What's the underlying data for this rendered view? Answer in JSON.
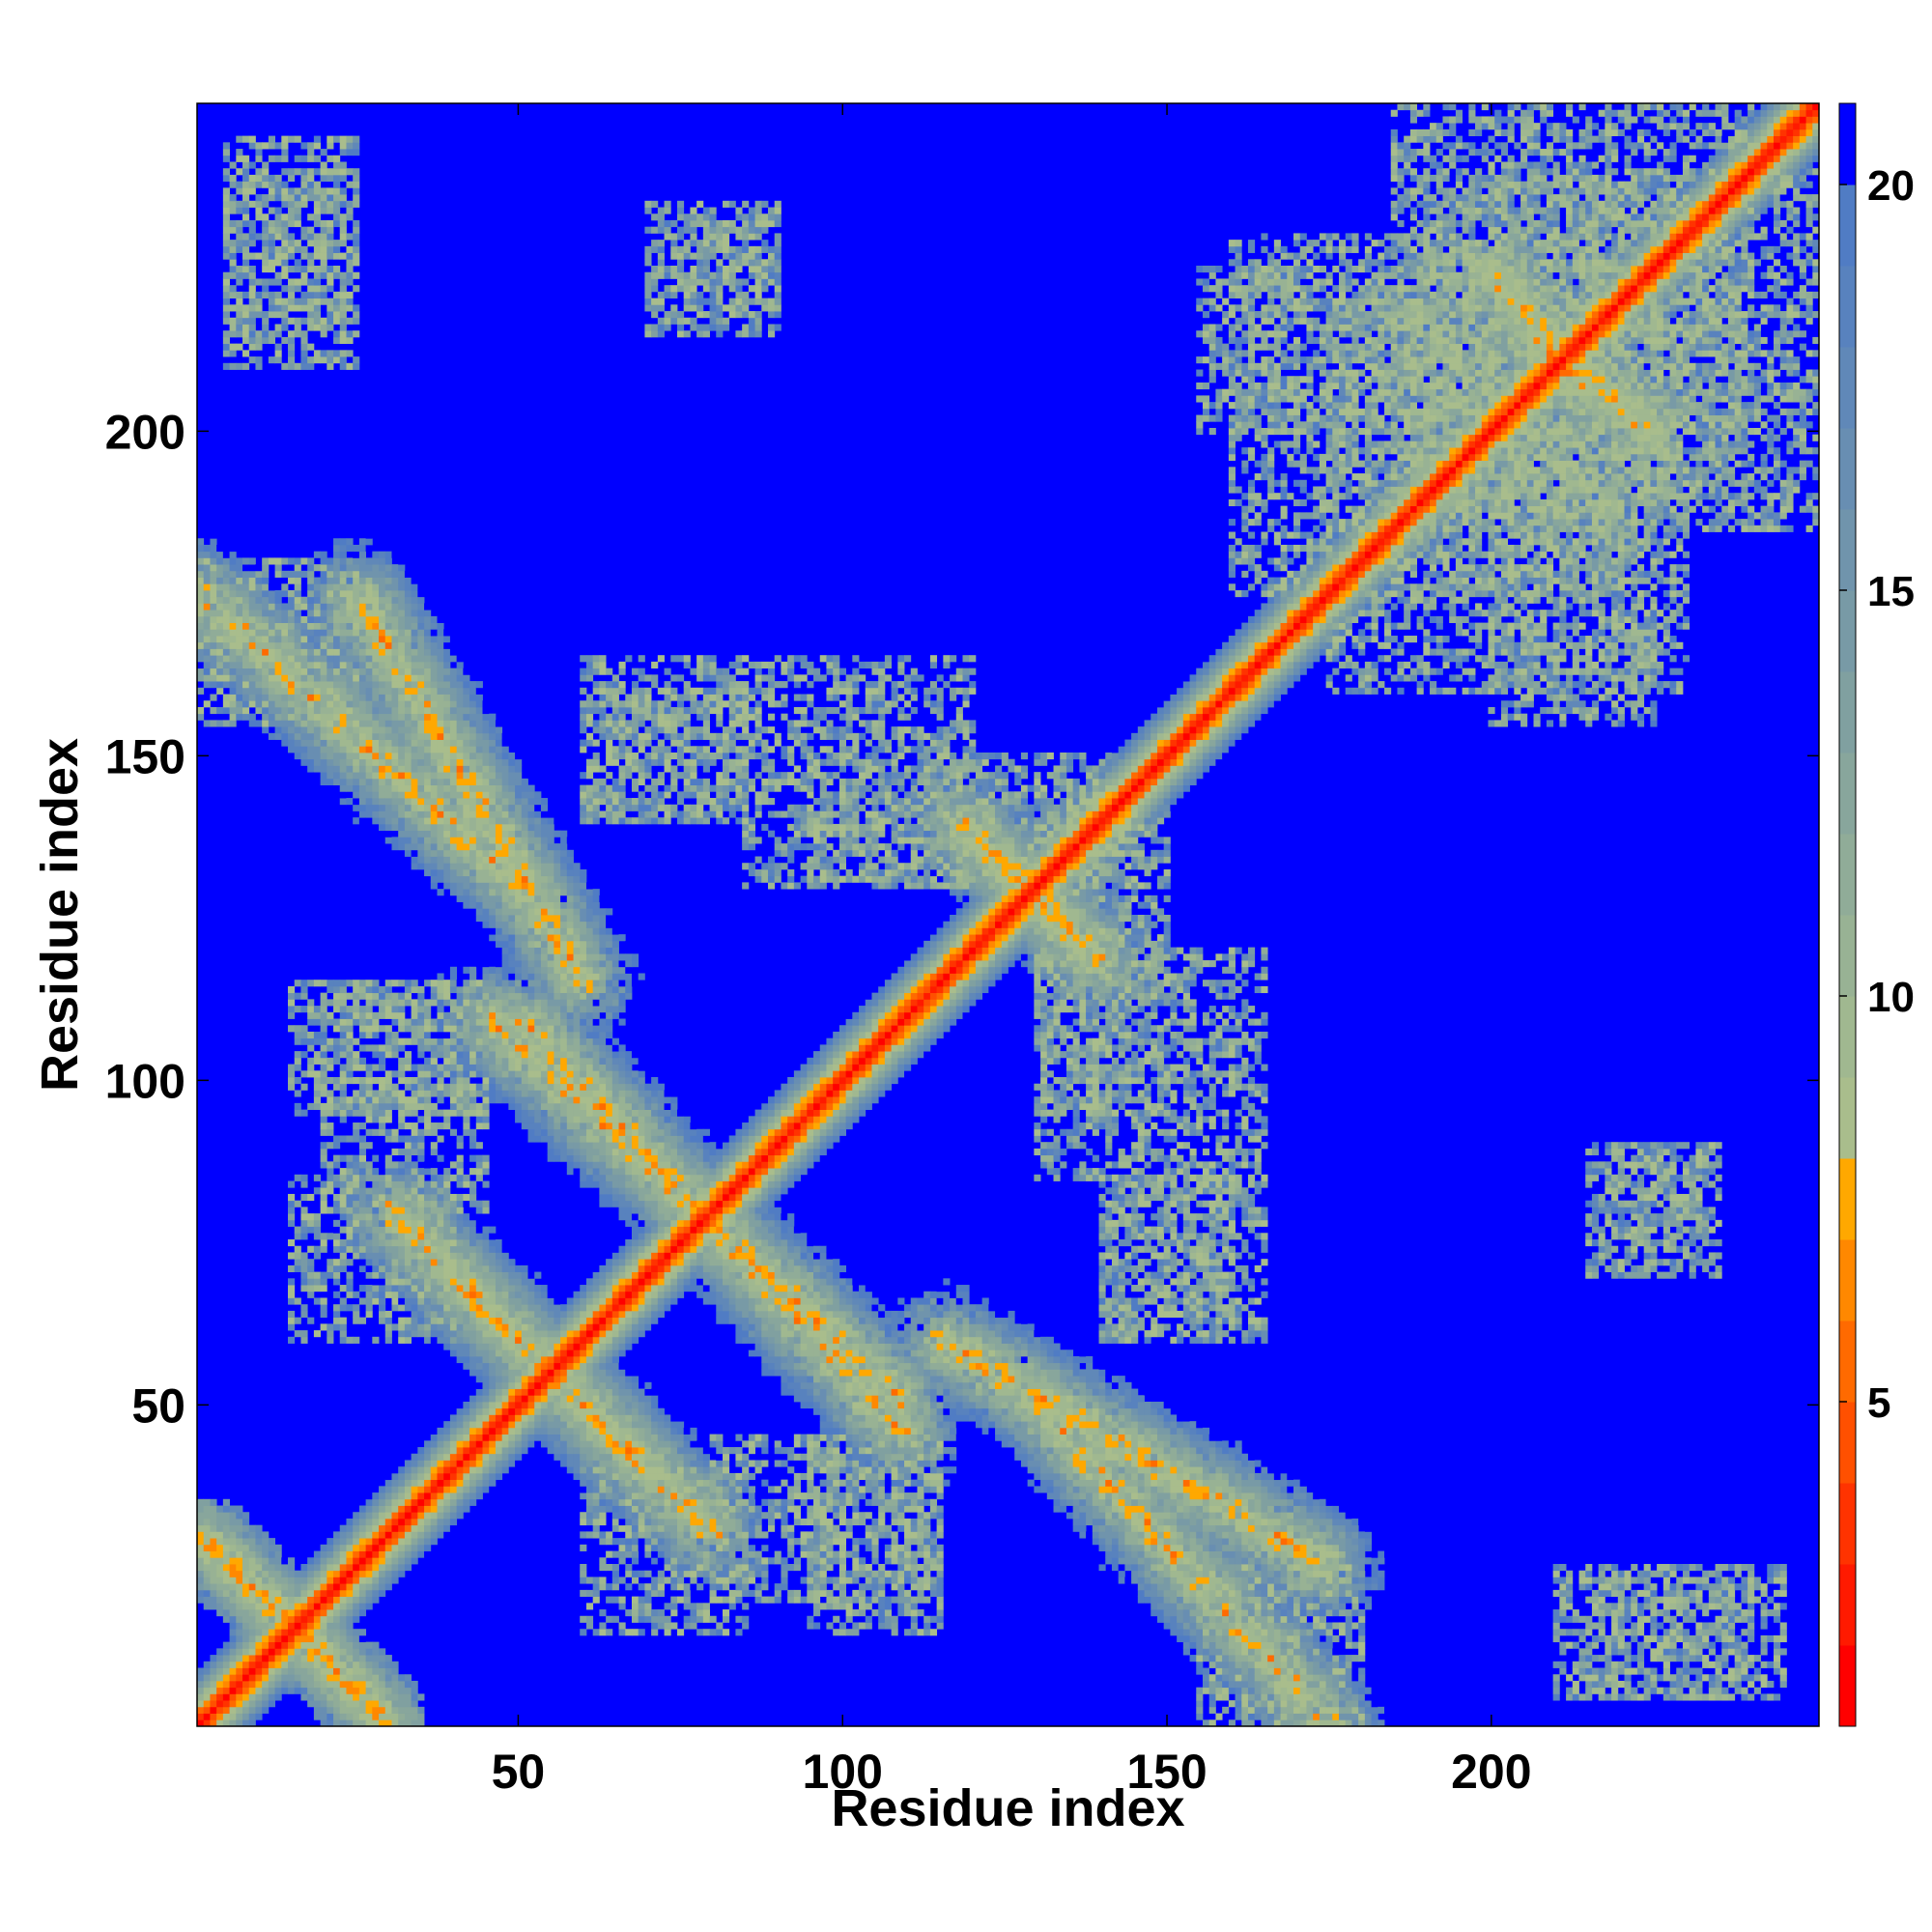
{
  "chart_data": {
    "type": "heatmap",
    "title": "",
    "xlabel": "Residue index",
    "ylabel": "Residue index",
    "xlim": [
      1,
      250
    ],
    "ylim": [
      1,
      250
    ],
    "x_ticks": [
      50,
      100,
      150,
      200
    ],
    "y_ticks": [
      50,
      100,
      150,
      200
    ],
    "colorbar": {
      "ticks": [
        5,
        10,
        15,
        20
      ],
      "range": [
        1,
        21
      ],
      "levels": [
        {
          "max": 2,
          "color": "#ff0000"
        },
        {
          "max": 3,
          "color": "#ff1a00"
        },
        {
          "max": 4,
          "color": "#ff3300"
        },
        {
          "max": 5,
          "color": "#ff5000"
        },
        {
          "max": 6,
          "color": "#ff6a00"
        },
        {
          "max": 7,
          "color": "#ff8800"
        },
        {
          "max": 8,
          "color": "#ffa800"
        },
        {
          "max": 9,
          "color": "#a9bd8c"
        },
        {
          "max": 10,
          "color": "#a0b890"
        },
        {
          "max": 11,
          "color": "#98b294"
        },
        {
          "max": 12,
          "color": "#90ac98"
        },
        {
          "max": 13,
          "color": "#88a69c"
        },
        {
          "max": 14,
          "color": "#80a0a0"
        },
        {
          "max": 15,
          "color": "#789aa6"
        },
        {
          "max": 16,
          "color": "#7094ac"
        },
        {
          "max": 17,
          "color": "#688eb2"
        },
        {
          "max": 18,
          "color": "#6088b8"
        },
        {
          "max": 19,
          "color": "#5882be"
        },
        {
          "max": 20,
          "color": "#507cc4"
        },
        {
          "max": 21,
          "color": "#0000ff"
        }
      ]
    },
    "background_color": "#0000ff",
    "contact_regions": [
      {
        "x": [
          1,
          250
        ],
        "y": [
          1,
          250
        ],
        "kind": "diagonal",
        "width": 7
      },
      {
        "x": [
          1,
          30
        ],
        "y": [
          1,
          30
        ],
        "kind": "anti",
        "width": 5
      },
      {
        "x": [
          30,
          70
        ],
        "y": [
          40,
          80
        ],
        "kind": "anti",
        "width": 8
      },
      {
        "x": [
          50,
          110
        ],
        "y": [
          45,
          110
        ],
        "kind": "anti",
        "width": 10
      },
      {
        "x": [
          120,
          140
        ],
        "y": [
          118,
          138
        ],
        "kind": "anti",
        "width": 6
      },
      {
        "x": [
          155,
          180
        ],
        "y": [
          1,
          25
        ],
        "kind": "patch"
      },
      {
        "x": [
          115,
          175
        ],
        "y": [
          25,
          60
        ],
        "kind": "anti",
        "width": 9
      },
      {
        "x": [
          140,
          165
        ],
        "y": [
          60,
          85
        ],
        "kind": "patch"
      },
      {
        "x": [
          130,
          165
        ],
        "y": [
          85,
          120
        ],
        "kind": "patch"
      },
      {
        "x": [
          95,
          145
        ],
        "y": [
          130,
          150
        ],
        "kind": "patch"
      },
      {
        "x": [
          1,
          50
        ],
        "y": [
          130,
          175
        ],
        "kind": "anti",
        "width": 10
      },
      {
        "x": [
          60,
          85
        ],
        "y": [
          140,
          160
        ],
        "kind": "patch"
      },
      {
        "x": [
          15,
          45
        ],
        "y": [
          95,
          115
        ],
        "kind": "patch"
      },
      {
        "x": [
          15,
          40
        ],
        "y": [
          60,
          85
        ],
        "kind": "patch"
      },
      {
        "x": [
          185,
          240
        ],
        "y": [
          190,
          250
        ],
        "kind": "patch"
      },
      {
        "x": [
          160,
          220
        ],
        "y": [
          175,
          230
        ],
        "kind": "patch"
      },
      {
        "x": [
          200,
          225
        ],
        "y": [
          155,
          210
        ],
        "kind": "patch"
      },
      {
        "x": [
          205,
          225
        ],
        "y": [
          200,
          215
        ],
        "kind": "anti",
        "width": 5
      },
      {
        "x": [
          218,
          233
        ],
        "y": [
          75,
          90
        ],
        "kind": "patch"
      },
      {
        "x": [
          210,
          240
        ],
        "y": [
          5,
          25
        ],
        "kind": "patch"
      },
      {
        "x": [
          70,
          90
        ],
        "y": [
          215,
          235
        ],
        "kind": "patch"
      },
      {
        "x": [
          5,
          25
        ],
        "y": [
          215,
          245
        ],
        "kind": "patch"
      },
      {
        "x": [
          80,
          100
        ],
        "y": [
          20,
          45
        ],
        "kind": "patch"
      },
      {
        "x": [
          95,
          115
        ],
        "y": [
          20,
          40
        ],
        "kind": "patch"
      }
    ]
  }
}
